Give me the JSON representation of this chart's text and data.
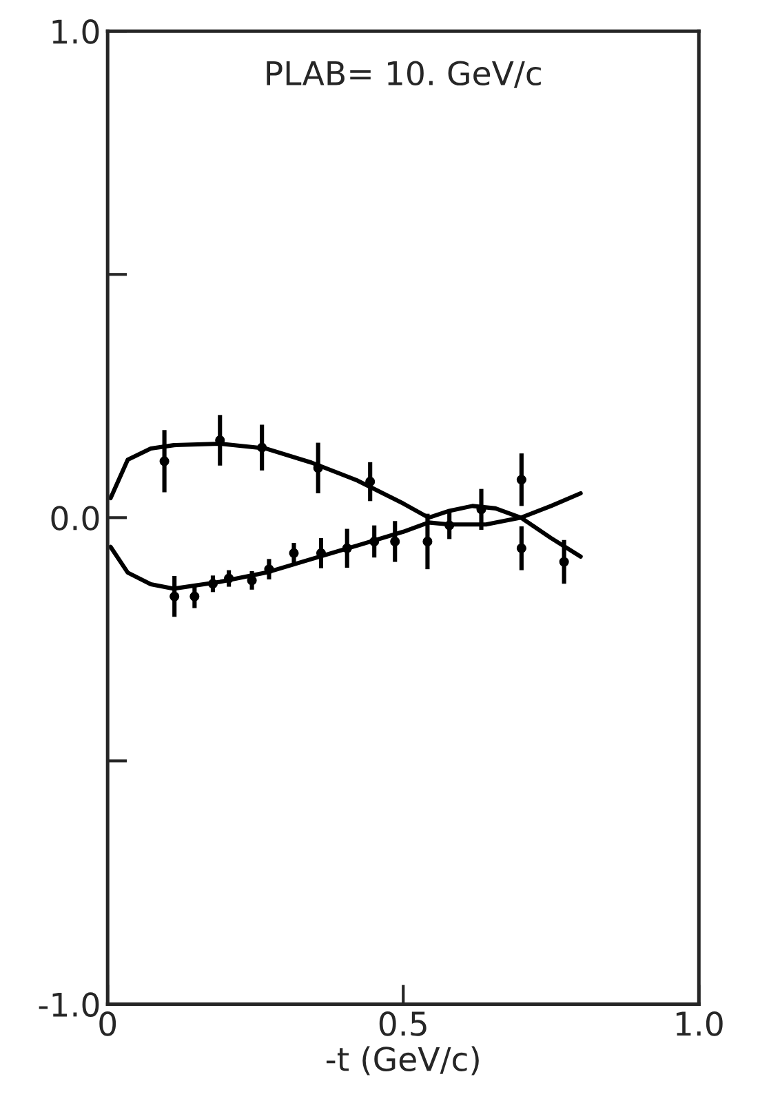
{
  "chart_data": {
    "type": "scatter",
    "xlabel": "-t (GeV/c)",
    "annotations": [
      "PLAB= 10. GeV/c"
    ],
    "xlim": [
      0,
      1.0
    ],
    "xticks": [
      {
        "value": 0,
        "label": "0"
      },
      0.5,
      {
        "value": 1,
        "label": "1.0"
      }
    ],
    "ylim": [
      -1.0,
      1.0
    ],
    "yticks": [
      {
        "value": -1,
        "label": "-1.0"
      },
      {
        "value": -0.5,
        "label": null
      },
      {
        "value": 0,
        "label": "0.0"
      },
      {
        "value": 0.5,
        "label": null
      },
      {
        "value": 1,
        "label": "1.0"
      }
    ],
    "grid": false,
    "marker": "circle",
    "series": [
      {
        "color": "#000000",
        "x": [
          0.096,
          0.19,
          0.261,
          0.356,
          0.444,
          0.632,
          0.7
        ],
        "values": [
          0.116,
          0.159,
          0.144,
          0.102,
          0.074,
          0.017,
          0.078
        ],
        "errors": [
          0.064,
          0.052,
          0.047,
          0.052,
          0.04,
          0.042,
          0.054
        ]
      },
      {
        "color": "#000000",
        "x": [
          0.113,
          0.147,
          0.178,
          0.205,
          0.244,
          0.273,
          0.315,
          0.361,
          0.405,
          0.451,
          0.486,
          0.541,
          0.578,
          0.7,
          0.772
        ],
        "values": [
          -0.162,
          -0.162,
          -0.136,
          -0.125,
          -0.129,
          -0.106,
          -0.073,
          -0.073,
          -0.063,
          -0.049,
          -0.049,
          -0.049,
          -0.016,
          -0.063,
          -0.091
        ],
        "errors": [
          0.042,
          0.024,
          0.017,
          0.017,
          0.019,
          0.021,
          0.021,
          0.031,
          0.04,
          0.033,
          0.042,
          0.057,
          0.028,
          0.045,
          0.045
        ]
      },
      {
        "type": "line",
        "color": "#000000",
        "marker": "none",
        "line_style": "solid",
        "x": [
          0.005,
          0.034,
          0.073,
          0.112,
          0.19,
          0.268,
          0.345,
          0.423,
          0.5,
          0.543,
          0.578,
          0.617,
          0.656,
          0.699,
          0.75,
          0.8
        ],
        "values": [
          0.04,
          0.119,
          0.142,
          0.149,
          0.152,
          0.142,
          0.113,
          0.076,
          0.029,
          0.0,
          0.014,
          0.024,
          0.019,
          0.0,
          -0.042,
          -0.08
        ]
      },
      {
        "type": "line",
        "color": "#000000",
        "marker": "none",
        "line_style": "solid",
        "x": [
          0.005,
          0.034,
          0.073,
          0.112,
          0.19,
          0.268,
          0.345,
          0.423,
          0.5,
          0.543,
          0.578,
          0.64,
          0.699,
          0.75,
          0.8
        ],
        "values": [
          -0.06,
          -0.113,
          -0.137,
          -0.146,
          -0.132,
          -0.113,
          -0.085,
          -0.057,
          -0.029,
          -0.01,
          -0.014,
          -0.014,
          0.0,
          0.024,
          0.05
        ]
      }
    ]
  }
}
